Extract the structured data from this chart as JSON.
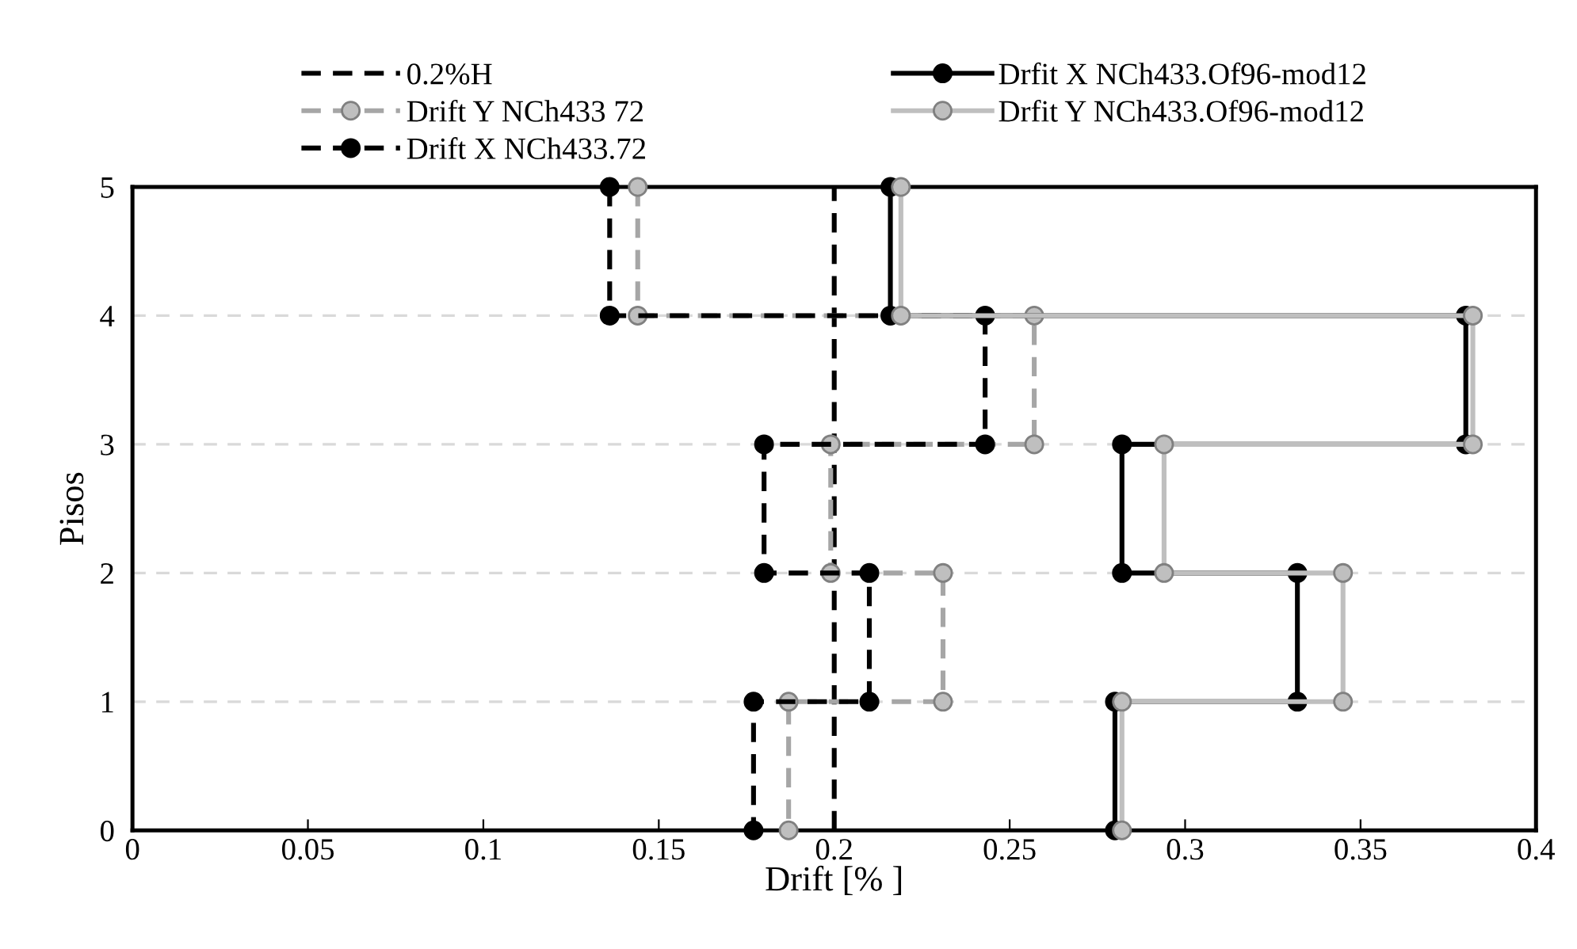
{
  "chart_data": {
    "type": "line",
    "xlabel": "Drift [% ]",
    "ylabel": "Pisos",
    "xlim": [
      0,
      0.4
    ],
    "xticks": [
      0,
      0.05,
      0.1,
      0.15,
      0.2,
      0.25,
      0.3,
      0.35,
      0.4
    ],
    "ylim": [
      0,
      5
    ],
    "yticks": [
      0,
      1,
      2,
      3,
      4,
      5
    ],
    "grid": "y",
    "legend": "top",
    "ref_lines": [
      {
        "axis": "x",
        "value": 0.2,
        "label": "0.2%H",
        "color": "#000000",
        "line_style": "dashed"
      }
    ],
    "series": [
      {
        "name": "Drift Y NCh433 72",
        "color": "#a6a6a6",
        "line_style": "dashed",
        "marker": "circle",
        "x": [
          0.144,
          0.144,
          0.257,
          0.257,
          0.199,
          0.199,
          0.231,
          0.231,
          0.187,
          0.187
        ],
        "values": [
          5,
          4,
          4,
          3,
          3,
          2,
          2,
          1,
          1,
          0
        ]
      },
      {
        "name": "Drift X NCh433.72",
        "color": "#000000",
        "line_style": "dashed",
        "marker": "circle",
        "x": [
          0.136,
          0.136,
          0.243,
          0.243,
          0.18,
          0.18,
          0.21,
          0.21,
          0.177,
          0.177
        ],
        "values": [
          5,
          4,
          4,
          3,
          3,
          2,
          2,
          1,
          1,
          0
        ]
      },
      {
        "name": "Drfit X NCh433.Of96-mod12",
        "color": "#000000",
        "line_style": "solid",
        "marker": "circle",
        "x": [
          0.216,
          0.216,
          0.38,
          0.38,
          0.282,
          0.282,
          0.332,
          0.332,
          0.28,
          0.28
        ],
        "values": [
          5,
          4,
          4,
          3,
          3,
          2,
          2,
          1,
          1,
          0
        ]
      },
      {
        "name": "Drfit Y NCh433.Of96-mod12",
        "color": "#bfbfbf",
        "line_style": "solid",
        "marker": "circle",
        "x": [
          0.219,
          0.219,
          0.382,
          0.382,
          0.294,
          0.294,
          0.345,
          0.345,
          0.282,
          0.282
        ],
        "values": [
          5,
          4,
          4,
          3,
          3,
          2,
          2,
          1,
          1,
          0
        ]
      }
    ]
  }
}
